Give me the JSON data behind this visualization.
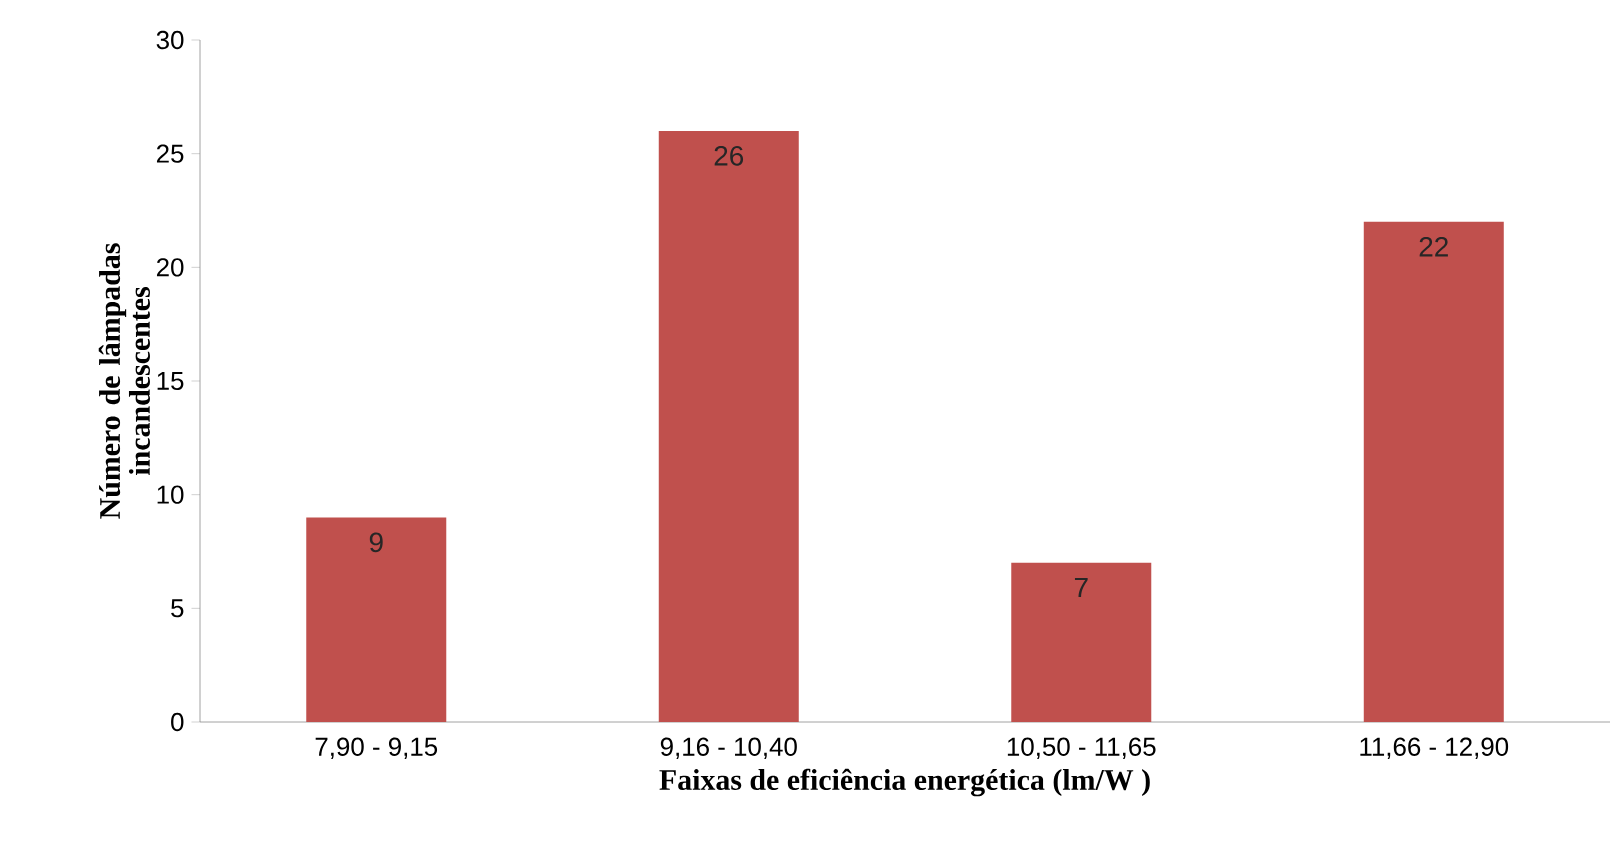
{
  "chart_data": {
    "type": "bar",
    "xlabel": "Faixas de eficiência energética (lm/W )",
    "ylabel": "Número de lâmpadas incandescentes",
    "categories": [
      "7,90 - 9,15",
      "9,16 - 10,40",
      "10,50 - 11,65",
      "11,66 - 12,90"
    ],
    "values": [
      9,
      26,
      7,
      22
    ],
    "color": "#c0504d",
    "ylim": [
      0,
      30
    ],
    "yticks": [
      0,
      5,
      10,
      15,
      20,
      25,
      30
    ],
    "data_labels": true
  }
}
